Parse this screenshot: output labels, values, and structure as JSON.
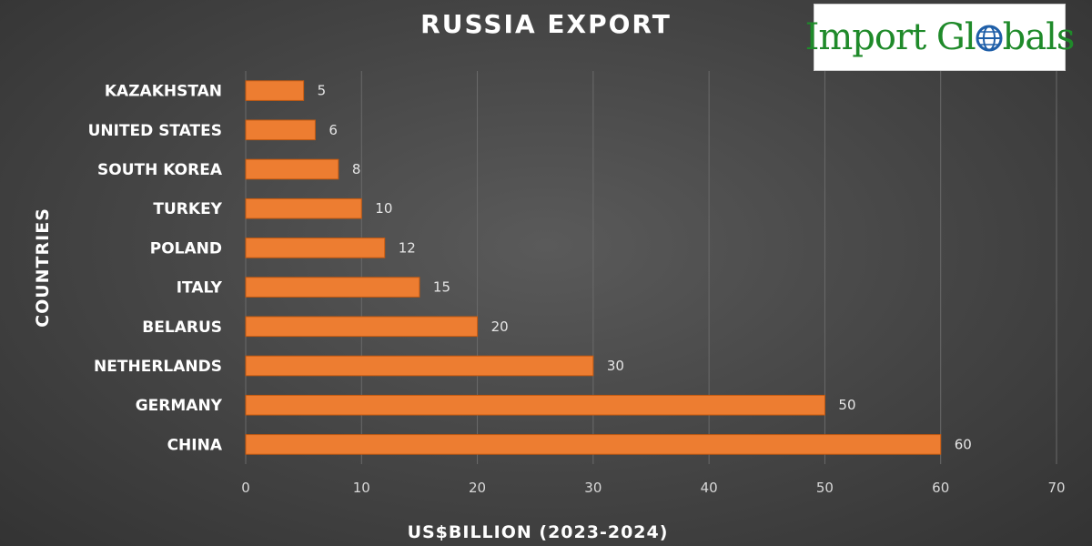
{
  "logo": {
    "part1": "Import Gl",
    "part2": "bals",
    "full_text": "Import Globals",
    "globe_icon": "globe-icon",
    "text_color": "#1f8a2a",
    "globe_color": "#1f5fa8"
  },
  "colors": {
    "bar": "#ed7d31",
    "bar_edge": "#c55a11",
    "grid": "#6a6a6a",
    "background": "#444444"
  },
  "chart_data": {
    "type": "bar",
    "orientation": "horizontal",
    "title": "RUSSIA EXPORT",
    "xlabel": "US$BILLION (2023-2024)",
    "ylabel": "COUNTRIES",
    "categories": [
      "KAZAKHSTAN",
      "UNITED STATES",
      "SOUTH KOREA",
      "TURKEY",
      "POLAND",
      "ITALY",
      "BELARUS",
      "NETHERLANDS",
      "GERMANY",
      "CHINA"
    ],
    "values": [
      5,
      6,
      8,
      10,
      12,
      15,
      20,
      30,
      50,
      60
    ],
    "xlim": [
      0,
      70
    ],
    "xticks": [
      0,
      10,
      20,
      30,
      40,
      50,
      60,
      70
    ],
    "grid": true,
    "data_labels": true,
    "legend": "none"
  }
}
